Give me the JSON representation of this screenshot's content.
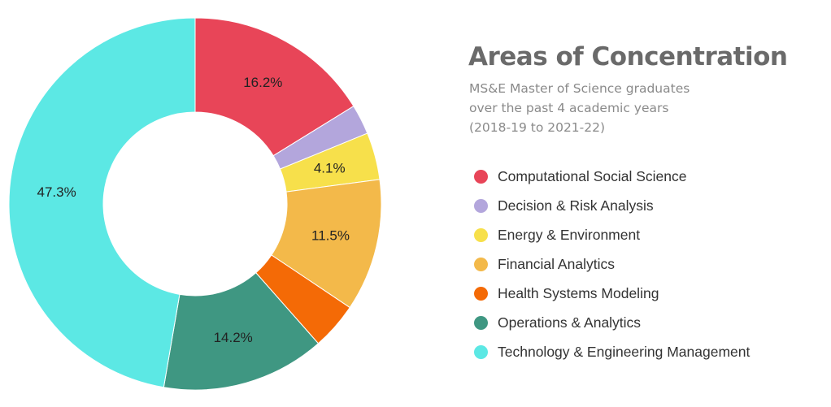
{
  "header": {
    "title": "Areas of Concentration",
    "subtitle_lines": [
      "MS&E Master of Science graduates",
      "over the past 4 academic years",
      "(2018-19 to 2021-22)"
    ]
  },
  "chart_data": {
    "type": "pie",
    "variant": "donut",
    "title": "Areas of Concentration",
    "legend_position": "right",
    "slices": [
      {
        "name": "Computational Social Science",
        "value": 16.2,
        "label": "16.2%",
        "color": "#e84558"
      },
      {
        "name": "Decision & Risk Analysis",
        "value": 2.6,
        "label": "",
        "color": "#b3a6dc"
      },
      {
        "name": "Energy & Environment",
        "value": 4.1,
        "label": "4.1%",
        "color": "#f7e04b"
      },
      {
        "name": "Financial Analytics",
        "value": 11.5,
        "label": "11.5%",
        "color": "#f3b94a"
      },
      {
        "name": "Health Systems Modeling",
        "value": 4.1,
        "label": "",
        "color": "#f46a06"
      },
      {
        "name": "Operations & Analytics",
        "value": 14.2,
        "label": "14.2%",
        "color": "#3f9782"
      },
      {
        "name": "Technology & Engineering Management",
        "value": 47.3,
        "label": "47.3%",
        "color": "#5ce8e4"
      }
    ]
  }
}
